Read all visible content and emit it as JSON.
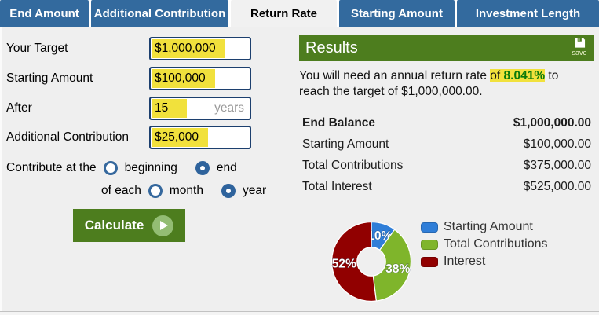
{
  "tabs": {
    "items": [
      {
        "label": "End Amount",
        "active": false
      },
      {
        "label": "Additional Contribution",
        "active": false
      },
      {
        "label": "Return Rate",
        "active": true
      },
      {
        "label": "Starting Amount",
        "active": false
      },
      {
        "label": "Investment Length",
        "active": false
      }
    ]
  },
  "form": {
    "fields": [
      {
        "label": "Your Target",
        "value": "$1,000,000"
      },
      {
        "label": "Starting Amount",
        "value": "$100,000"
      },
      {
        "label": "After",
        "value": "15",
        "suffix": "years"
      },
      {
        "label": "Additional Contribution",
        "value": "$25,000"
      }
    ],
    "contribute_row": {
      "prefix": "Contribute at the",
      "options": [
        {
          "label": "beginning",
          "selected": false
        },
        {
          "label": "end",
          "selected": true
        }
      ]
    },
    "of_each_row": {
      "prefix": "of each",
      "options": [
        {
          "label": "month",
          "selected": false
        },
        {
          "label": "year",
          "selected": true
        }
      ]
    },
    "calculate_label": "Calculate"
  },
  "results": {
    "header": "Results",
    "save_label": "save",
    "sentence_pre": "You will need an annual return rate ",
    "sentence_highlight_word": "of ",
    "sentence_rate": "8.041%",
    "sentence_post": " to reach the target of $1,000,000.00.",
    "table": [
      {
        "label": "End Balance",
        "value": "$1,000,000.00",
        "bold": true
      },
      {
        "label": "Starting Amount",
        "value": "$100,000.00",
        "bold": false
      },
      {
        "label": "Total Contributions",
        "value": "$375,000.00",
        "bold": false
      },
      {
        "label": "Total Interest",
        "value": "$525,000.00",
        "bold": false
      }
    ]
  },
  "chart_data": {
    "type": "pie",
    "donut": true,
    "start_angle_deg": 0,
    "direction": "clockwise",
    "slices": [
      {
        "label": "Starting Amount",
        "value": 10,
        "display": "10%",
        "color": "#2f7ed8"
      },
      {
        "label": "Total Contributions",
        "value": 38,
        "display": "38%",
        "color": "#7fb52b"
      },
      {
        "label": "Interest",
        "value": 52,
        "display": "52%",
        "color": "#910000"
      }
    ],
    "legend_position": "right"
  },
  "colors": {
    "tab_blue": "#336a9e",
    "panel_green": "#4d7d1e",
    "highlight_yellow": "#f1e13c",
    "rate_green": "#0a7a0a",
    "input_border_navy": "#1c3f6e",
    "radio_blue": "#2e639c",
    "background_gray": "#efefef"
  }
}
